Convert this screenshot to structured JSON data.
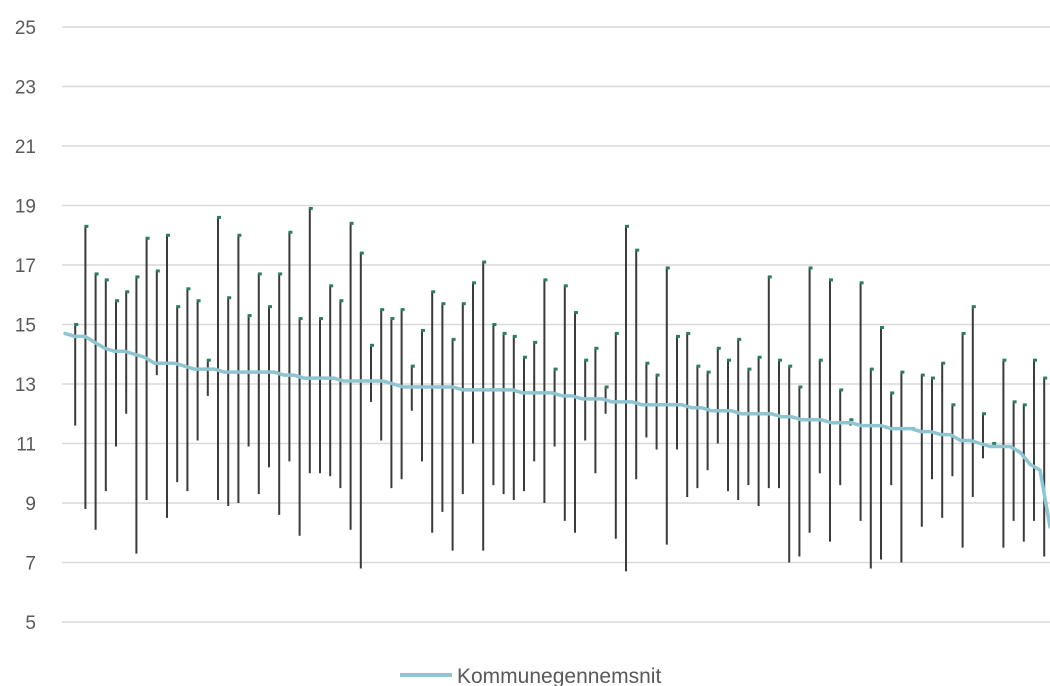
{
  "chart_data": {
    "type": "line",
    "title": "",
    "xlabel": "",
    "ylabel": "",
    "ylim": [
      5,
      25
    ],
    "yticks": [
      5,
      7,
      9,
      11,
      13,
      15,
      17,
      19,
      21,
      23,
      25
    ],
    "grid": true,
    "legend_position": "bottom-center",
    "colors": {
      "series": "#8ec5d0",
      "range": "#3a3a3a",
      "marker": "#2e7d5b",
      "grid": "#d9d9d9",
      "text": "#595959"
    },
    "series": [
      {
        "name": "Kommunegennemsnit",
        "values": [
          14.7,
          14.6,
          14.6,
          14.4,
          14.2,
          14.1,
          14.1,
          14.0,
          13.9,
          13.7,
          13.7,
          13.7,
          13.6,
          13.5,
          13.5,
          13.5,
          13.4,
          13.4,
          13.4,
          13.4,
          13.4,
          13.4,
          13.3,
          13.3,
          13.2,
          13.2,
          13.2,
          13.2,
          13.1,
          13.1,
          13.1,
          13.1,
          13.1,
          13.0,
          12.9,
          12.9,
          12.9,
          12.9,
          12.9,
          12.9,
          12.8,
          12.8,
          12.8,
          12.8,
          12.8,
          12.8,
          12.7,
          12.7,
          12.7,
          12.7,
          12.6,
          12.6,
          12.5,
          12.5,
          12.5,
          12.4,
          12.4,
          12.4,
          12.3,
          12.3,
          12.3,
          12.3,
          12.3,
          12.2,
          12.2,
          12.1,
          12.1,
          12.1,
          12.0,
          12.0,
          12.0,
          12.0,
          11.9,
          11.9,
          11.8,
          11.8,
          11.8,
          11.7,
          11.7,
          11.7,
          11.6,
          11.6,
          11.6,
          11.5,
          11.5,
          11.5,
          11.4,
          11.4,
          11.3,
          11.3,
          11.1,
          11.1,
          11.0,
          10.9,
          10.9,
          10.9,
          10.7,
          10.3,
          10.1,
          8.2
        ]
      }
    ],
    "ranges": [
      {
        "x": 1,
        "low": 11.6,
        "high": 15.0
      },
      {
        "x": 2,
        "low": 8.8,
        "high": 18.3
      },
      {
        "x": 3,
        "low": 8.1,
        "high": 16.7
      },
      {
        "x": 4,
        "low": 9.4,
        "high": 16.5
      },
      {
        "x": 5,
        "low": 10.9,
        "high": 15.8
      },
      {
        "x": 6,
        "low": 12.0,
        "high": 16.1
      },
      {
        "x": 7,
        "low": 7.3,
        "high": 16.6
      },
      {
        "x": 8,
        "low": 9.1,
        "high": 17.9
      },
      {
        "x": 9,
        "low": 13.3,
        "high": 16.8
      },
      {
        "x": 10,
        "low": 8.5,
        "high": 18.0
      },
      {
        "x": 11,
        "low": 9.7,
        "high": 15.6
      },
      {
        "x": 12,
        "low": 9.4,
        "high": 16.2
      },
      {
        "x": 13,
        "low": 11.1,
        "high": 15.8
      },
      {
        "x": 14,
        "low": 12.6,
        "high": 13.8
      },
      {
        "x": 15,
        "low": 9.1,
        "high": 18.6
      },
      {
        "x": 16,
        "low": 8.9,
        "high": 15.9
      },
      {
        "x": 17,
        "low": 9.0,
        "high": 18.0
      },
      {
        "x": 18,
        "low": 10.9,
        "high": 15.3
      },
      {
        "x": 19,
        "low": 9.3,
        "high": 16.7
      },
      {
        "x": 20,
        "low": 10.2,
        "high": 15.6
      },
      {
        "x": 21,
        "low": 8.6,
        "high": 16.7
      },
      {
        "x": 22,
        "low": 10.4,
        "high": 18.1
      },
      {
        "x": 23,
        "low": 7.9,
        "high": 15.2
      },
      {
        "x": 24,
        "low": 10.0,
        "high": 18.9
      },
      {
        "x": 25,
        "low": 10.0,
        "high": 15.2
      },
      {
        "x": 26,
        "low": 9.9,
        "high": 16.3
      },
      {
        "x": 27,
        "low": 9.5,
        "high": 15.8
      },
      {
        "x": 28,
        "low": 8.1,
        "high": 18.4
      },
      {
        "x": 29,
        "low": 6.8,
        "high": 17.4
      },
      {
        "x": 30,
        "low": 12.4,
        "high": 14.3
      },
      {
        "x": 31,
        "low": 11.1,
        "high": 15.5
      },
      {
        "x": 32,
        "low": 9.5,
        "high": 15.2
      },
      {
        "x": 33,
        "low": 9.8,
        "high": 15.5
      },
      {
        "x": 34,
        "low": 12.1,
        "high": 13.6
      },
      {
        "x": 35,
        "low": 10.4,
        "high": 14.8
      },
      {
        "x": 36,
        "low": 8.0,
        "high": 16.1
      },
      {
        "x": 37,
        "low": 8.7,
        "high": 15.7
      },
      {
        "x": 38,
        "low": 7.4,
        "high": 14.5
      },
      {
        "x": 39,
        "low": 9.3,
        "high": 15.7
      },
      {
        "x": 40,
        "low": 11.0,
        "high": 16.4
      },
      {
        "x": 41,
        "low": 7.4,
        "high": 17.1
      },
      {
        "x": 42,
        "low": 9.6,
        "high": 15.0
      },
      {
        "x": 43,
        "low": 9.3,
        "high": 14.7
      },
      {
        "x": 44,
        "low": 9.1,
        "high": 14.6
      },
      {
        "x": 45,
        "low": 9.4,
        "high": 13.9
      },
      {
        "x": 46,
        "low": 10.4,
        "high": 14.4
      },
      {
        "x": 47,
        "low": 9.0,
        "high": 16.5
      },
      {
        "x": 48,
        "low": 10.9,
        "high": 13.5
      },
      {
        "x": 49,
        "low": 8.4,
        "high": 16.3
      },
      {
        "x": 50,
        "low": 8.0,
        "high": 15.4
      },
      {
        "x": 51,
        "low": 11.1,
        "high": 13.8
      },
      {
        "x": 52,
        "low": 10.0,
        "high": 14.2
      },
      {
        "x": 53,
        "low": 12.0,
        "high": 12.9
      },
      {
        "x": 54,
        "low": 7.8,
        "high": 14.7
      },
      {
        "x": 55,
        "low": 6.7,
        "high": 18.3
      },
      {
        "x": 56,
        "low": 9.8,
        "high": 17.5
      },
      {
        "x": 57,
        "low": 11.2,
        "high": 13.7
      },
      {
        "x": 58,
        "low": 10.8,
        "high": 13.3
      },
      {
        "x": 59,
        "low": 7.6,
        "high": 16.9
      },
      {
        "x": 60,
        "low": 10.8,
        "high": 14.6
      },
      {
        "x": 61,
        "low": 9.2,
        "high": 14.7
      },
      {
        "x": 62,
        "low": 9.5,
        "high": 13.6
      },
      {
        "x": 63,
        "low": 10.1,
        "high": 13.4
      },
      {
        "x": 64,
        "low": 11.0,
        "high": 14.2
      },
      {
        "x": 65,
        "low": 9.4,
        "high": 13.8
      },
      {
        "x": 66,
        "low": 9.1,
        "high": 14.5
      },
      {
        "x": 67,
        "low": 9.6,
        "high": 13.5
      },
      {
        "x": 68,
        "low": 8.9,
        "high": 13.9
      },
      {
        "x": 69,
        "low": 9.5,
        "high": 16.6
      },
      {
        "x": 70,
        "low": 9.5,
        "high": 13.8
      },
      {
        "x": 71,
        "low": 7.0,
        "high": 13.6
      },
      {
        "x": 72,
        "low": 7.2,
        "high": 12.9
      },
      {
        "x": 73,
        "low": 8.0,
        "high": 16.9
      },
      {
        "x": 74,
        "low": 10.0,
        "high": 13.8
      },
      {
        "x": 75,
        "low": 7.7,
        "high": 16.5
      },
      {
        "x": 76,
        "low": 9.6,
        "high": 12.8
      },
      {
        "x": 77,
        "low": 11.6,
        "high": 11.8
      },
      {
        "x": 78,
        "low": 8.4,
        "high": 16.4
      },
      {
        "x": 79,
        "low": 6.8,
        "high": 13.5
      },
      {
        "x": 80,
        "low": 7.1,
        "high": 14.9
      },
      {
        "x": 81,
        "low": 9.6,
        "high": 12.7
      },
      {
        "x": 82,
        "low": 7.0,
        "high": 13.4
      },
      {
        "x": 83,
        "low": 11.5,
        "high": 11.5
      },
      {
        "x": 84,
        "low": 8.2,
        "high": 13.3
      },
      {
        "x": 85,
        "low": 9.8,
        "high": 13.2
      },
      {
        "x": 86,
        "low": 8.5,
        "high": 13.7
      },
      {
        "x": 87,
        "low": 9.9,
        "high": 12.3
      },
      {
        "x": 88,
        "low": 7.5,
        "high": 14.7
      },
      {
        "x": 89,
        "low": 9.2,
        "high": 15.6
      },
      {
        "x": 90,
        "low": 10.5,
        "high": 12.0
      },
      {
        "x": 91,
        "low": 11.0,
        "high": 11.0
      },
      {
        "x": 92,
        "low": 7.5,
        "high": 13.8
      },
      {
        "x": 93,
        "low": 8.4,
        "high": 12.4
      },
      {
        "x": 94,
        "low": 7.7,
        "high": 12.3
      },
      {
        "x": 95,
        "low": 8.4,
        "high": 13.8
      },
      {
        "x": 96,
        "low": 7.2,
        "high": 13.2
      },
      {
        "x": 97,
        "low": 7.6,
        "high": 12.8
      }
    ]
  }
}
